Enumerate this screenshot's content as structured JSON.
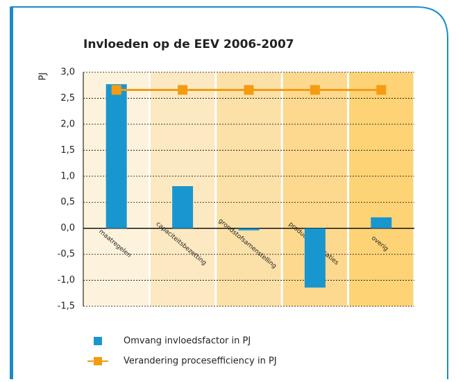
{
  "chart_data": {
    "type": "bar_line",
    "title": "Invloeden op de EEV 2006-2007",
    "y_label": "PJ",
    "categories": [
      "maatregelen",
      "capaciteitsbezetting",
      "grondstofsamenstelling",
      "productspecificaties",
      "overig"
    ],
    "series": [
      {
        "name": "Omvang invloedsfactor in PJ",
        "color": "#1a96cf",
        "type": "bar",
        "values": [
          2.77,
          0.81,
          -0.04,
          -1.14,
          0.21
        ]
      },
      {
        "name": "Verandering procesefficiency in PJ",
        "color": "#f39c12",
        "type": "line",
        "values": [
          2.66,
          2.66,
          2.66,
          2.66,
          2.66
        ]
      }
    ],
    "ylim": [
      -1.5,
      3
    ],
    "yticks": [
      {
        "value": -1.5,
        "label": "-1,5"
      },
      {
        "value": -1,
        "label": "-1,0"
      },
      {
        "value": -0.5,
        "label": "-0,5"
      },
      {
        "value": 0,
        "label": "0,0"
      },
      {
        "value": 0.5,
        "label": "0,5"
      },
      {
        "value": 1,
        "label": "1,0"
      },
      {
        "value": 1.5,
        "label": "1,5"
      },
      {
        "value": 2,
        "label": "2,0"
      },
      {
        "value": 2.5,
        "label": "2,5"
      },
      {
        "value": 3,
        "label": "3,0"
      }
    ],
    "grid": true
  }
}
